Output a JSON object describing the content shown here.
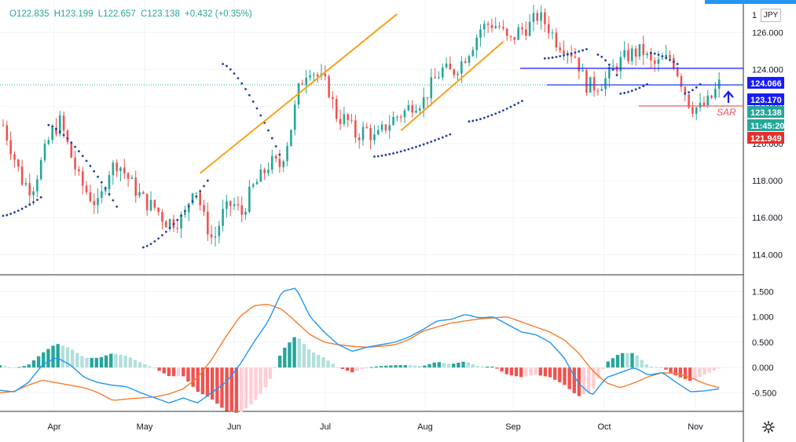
{
  "header": {
    "open": "O122.835",
    "high": "H123.199",
    "low": "L122.657",
    "close": "C123.138",
    "change": "+0.432 (+0.35%)",
    "currency": "JPY"
  },
  "colors": {
    "up": "#26a69a",
    "down": "#ef5350",
    "sar": "#1e3fa0",
    "trend": "#f7a21b",
    "hline": "#1a1aff",
    "macd": "#2196f3",
    "signal": "#f57c2b"
  },
  "chart_data": [
    {
      "type": "candlestick",
      "ylim": [
        113,
        127.5
      ],
      "y_ticks": [
        "114.000",
        "116.000",
        "118.000",
        "120.000",
        "122.000",
        "124.000",
        "126.000"
      ],
      "x_ticks": [
        "Apr",
        "May",
        "Jun",
        "Jul",
        "Aug",
        "Sep",
        "Oct",
        "Nov"
      ],
      "price_labels": [
        {
          "text": "124.066",
          "kind": "hline"
        },
        {
          "text": "123.170",
          "kind": "hline"
        },
        {
          "text": "123.138",
          "kind": "last"
        },
        {
          "text": "11:45:20",
          "kind": "timer"
        },
        {
          "text": "121.949",
          "kind": "sar"
        }
      ],
      "annotations": [
        "SAR"
      ],
      "price_path": [
        121,
        119.5,
        118,
        117.5,
        119,
        120.5,
        121.2,
        119.5,
        118,
        117.2,
        116.6,
        118.5,
        119,
        118.2,
        117.4,
        116.8,
        116.5,
        115.8,
        115.8,
        116,
        118,
        116,
        114.7,
        116.2,
        116.8,
        116.2,
        117.5,
        118.2,
        119,
        118.8,
        120.5,
        123,
        124.2,
        123.6,
        123.1,
        121.4,
        121.3,
        120.4,
        120.8,
        120.2,
        120.9,
        121.4,
        121.7,
        122.2,
        122.3,
        123.3,
        124,
        123.8,
        124.4,
        125.2,
        126.2,
        126.5,
        126.3,
        125.4,
        126.1,
        126.3,
        126.9,
        126.4,
        125.5,
        125.2,
        124.7,
        123.2,
        123.1,
        123.4,
        124.1,
        124.6,
        124.9,
        125,
        124.2,
        124.4,
        124.7,
        123.4,
        122,
        121.9,
        122.3,
        123.2
      ],
      "sar_segments": [
        {
          "points": [
            [
              0,
              116.1
            ],
            [
              10,
              117.1
            ]
          ]
        },
        {
          "points": [
            [
              12,
              121
            ],
            [
              30,
              116.6
            ]
          ]
        },
        {
          "points": [
            [
              37,
              114.4
            ],
            [
              54,
              118
            ]
          ]
        },
        {
          "points": [
            [
              58,
              124.3
            ],
            [
              73,
              119.4
            ]
          ]
        },
        {
          "points": [
            [
              98,
              119.3
            ],
            [
              118,
              120.5
            ]
          ]
        },
        {
          "points": [
            [
              123,
              121.2
            ],
            [
              137,
              122.3
            ]
          ]
        },
        {
          "points": [
            [
              143,
              124.6
            ],
            [
              154,
              125.1
            ]
          ]
        },
        {
          "points": [
            [
              157,
              124.8
            ],
            [
              162,
              123.7
            ]
          ]
        },
        {
          "points": [
            [
              163,
              122.7
            ],
            [
              170,
              123.2
            ]
          ]
        },
        {
          "points": [
            [
              171,
              124.9
            ],
            [
              178,
              124.3
            ]
          ]
        },
        {
          "points": [
            [
              180,
              122.7
            ],
            [
              184,
              123.2
            ]
          ]
        }
      ],
      "trend_lines": [
        [
          [
            52,
            118.4
          ],
          [
            104,
            127
          ]
        ],
        [
          [
            105,
            120.7
          ],
          [
            132,
            125.5
          ]
        ]
      ],
      "horizontal_lines": [
        {
          "y": 124.066,
          "from": 95
        },
        {
          "y": 123.17,
          "from": 102
        }
      ],
      "sar_level": 121.949
    },
    {
      "type": "macd",
      "ylim": [
        -0.85,
        1.8
      ],
      "y_ticks": [
        "1.500",
        "1.000",
        "0.500",
        "0.000",
        "-0.500"
      ],
      "macd": [
        -0.45,
        -0.48,
        -0.3,
        0.05,
        0.2,
        0.05,
        -0.2,
        -0.3,
        -0.35,
        -0.38,
        -0.5,
        -0.6,
        -0.7,
        -0.6,
        -0.7,
        -0.5,
        -0.3,
        0.05,
        0.5,
        0.9,
        1.5,
        1.57,
        1.0,
        0.7,
        0.45,
        0.32,
        0.4,
        0.45,
        0.5,
        0.6,
        0.75,
        0.92,
        0.95,
        1.05,
        0.98,
        1.0,
        0.85,
        0.7,
        0.65,
        0.5,
        0.2,
        -0.3,
        -0.55,
        -0.2,
        -0.1,
        0.0,
        -0.15,
        -0.1,
        -0.3,
        -0.48,
        -0.46,
        -0.42
      ],
      "signal": [
        -0.5,
        -0.47,
        -0.35,
        -0.25,
        -0.3,
        -0.35,
        -0.4,
        -0.5,
        -0.65,
        -0.62,
        -0.6,
        -0.58,
        -0.52,
        -0.42,
        -0.2,
        0.15,
        0.6,
        1.0,
        1.22,
        1.25,
        1.15,
        0.9,
        0.65,
        0.5,
        0.45,
        0.42,
        0.4,
        0.42,
        0.45,
        0.55,
        0.72,
        0.8,
        0.88,
        0.92,
        0.96,
        0.98,
        1.0,
        0.9,
        0.8,
        0.7,
        0.55,
        0.3,
        -0.05,
        -0.3,
        -0.4,
        -0.3,
        -0.18,
        -0.1,
        -0.12,
        -0.2,
        -0.32,
        -0.4
      ]
    }
  ]
}
